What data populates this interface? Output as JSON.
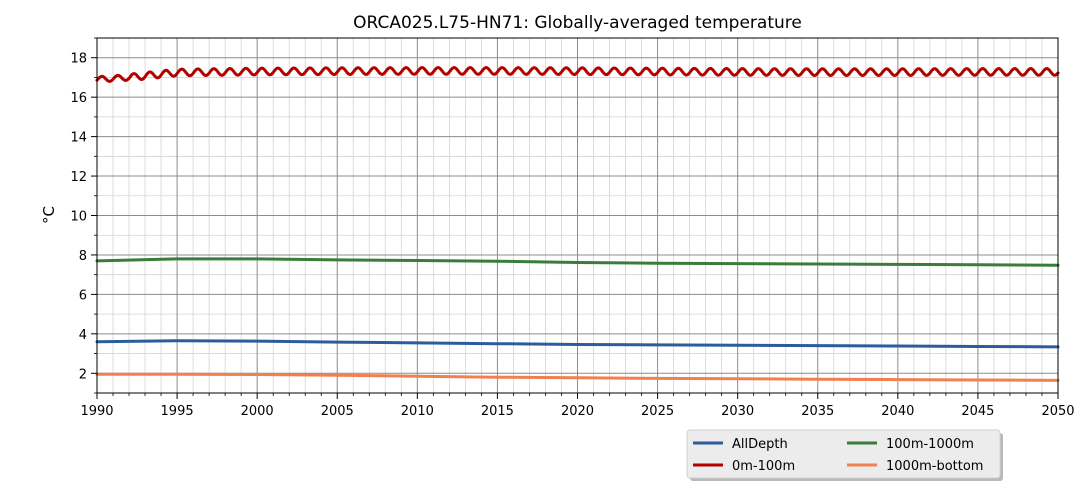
{
  "chart_data": {
    "type": "line",
    "title": "ORCA025.L75-HN71: Globally-averaged temperature",
    "xlabel": "",
    "ylabel": "°C",
    "xlim": [
      1990,
      2050
    ],
    "ylim": [
      1,
      19
    ],
    "x_ticks": [
      1990,
      1995,
      2000,
      2005,
      2010,
      2015,
      2020,
      2025,
      2030,
      2035,
      2040,
      2045,
      2050
    ],
    "y_ticks": [
      2,
      4,
      6,
      8,
      10,
      12,
      14,
      16,
      18
    ],
    "grid": true,
    "minor_grid": true,
    "legend_position": "below-right",
    "series": [
      {
        "name": "AllDepth",
        "color": "#2b5d9b",
        "x": [
          1990,
          1995,
          2000,
          2005,
          2010,
          2015,
          2020,
          2025,
          2030,
          2035,
          2040,
          2045,
          2050
        ],
        "values": [
          3.6,
          3.65,
          3.63,
          3.58,
          3.54,
          3.5,
          3.46,
          3.44,
          3.42,
          3.4,
          3.38,
          3.36,
          3.34
        ]
      },
      {
        "name": "0m-100m",
        "color": "#b00000",
        "seasonal_cycle": true,
        "x": [
          1990,
          1992,
          1995,
          2000,
          2005,
          2010,
          2015,
          2020,
          2025,
          2030,
          2035,
          2040,
          2045,
          2050
        ],
        "values": [
          16.9,
          17.0,
          17.25,
          17.3,
          17.32,
          17.33,
          17.33,
          17.32,
          17.3,
          17.28,
          17.27,
          17.27,
          17.28,
          17.28
        ]
      },
      {
        "name": "100m-1000m",
        "color": "#3a7d3a",
        "x": [
          1990,
          1995,
          2000,
          2005,
          2010,
          2015,
          2020,
          2025,
          2030,
          2035,
          2040,
          2045,
          2050
        ],
        "values": [
          7.7,
          7.8,
          7.8,
          7.75,
          7.72,
          7.68,
          7.62,
          7.58,
          7.56,
          7.54,
          7.52,
          7.5,
          7.48
        ]
      },
      {
        "name": "1000m-bottom",
        "color": "#f08050",
        "x": [
          1990,
          1995,
          2000,
          2005,
          2010,
          2015,
          2020,
          2025,
          2030,
          2035,
          2040,
          2045,
          2050
        ],
        "values": [
          1.95,
          1.95,
          1.94,
          1.9,
          1.85,
          1.8,
          1.77,
          1.74,
          1.72,
          1.7,
          1.68,
          1.66,
          1.64
        ]
      }
    ]
  }
}
